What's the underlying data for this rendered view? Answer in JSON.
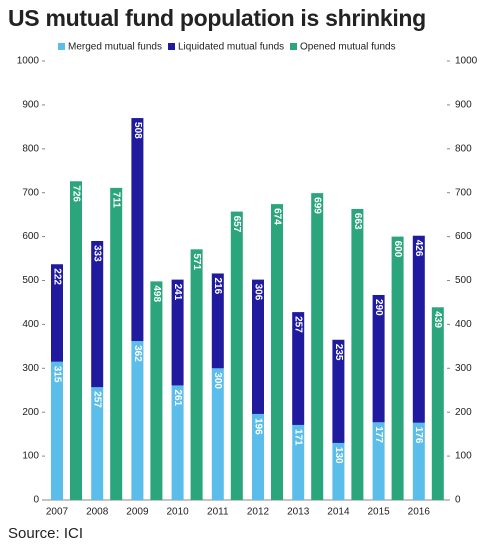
{
  "chart_data": {
    "type": "bar",
    "title": "US mutual fund population is shrinking",
    "source": "Source:  ICI",
    "categories": [
      "2007",
      "2008",
      "2009",
      "2010",
      "2011",
      "2012",
      "2013",
      "2014",
      "2015",
      "2016"
    ],
    "series": [
      {
        "name": "Merged mutual funds",
        "color": "#5bbde9",
        "stack": "a",
        "values": [
          315,
          257,
          362,
          261,
          300,
          196,
          171,
          130,
          177,
          176
        ]
      },
      {
        "name": "Liquidated mutual funds",
        "color": "#1f1a9e",
        "stack": "a",
        "values": [
          222,
          333,
          508,
          241,
          216,
          306,
          257,
          235,
          290,
          426
        ]
      },
      {
        "name": "Opened mutual funds",
        "color": "#2aa57c",
        "stack": "b",
        "values": [
          726,
          711,
          498,
          571,
          657,
          674,
          699,
          663,
          600,
          439
        ]
      }
    ],
    "ylim": [
      0,
      1000
    ],
    "yticks": [
      0,
      100,
      200,
      300,
      400,
      500,
      600,
      700,
      800,
      900,
      1000
    ],
    "y2lim": [
      0,
      1000
    ],
    "y2ticks": [
      0,
      100,
      200,
      300,
      400,
      500,
      600,
      700,
      800,
      900,
      1000
    ]
  }
}
